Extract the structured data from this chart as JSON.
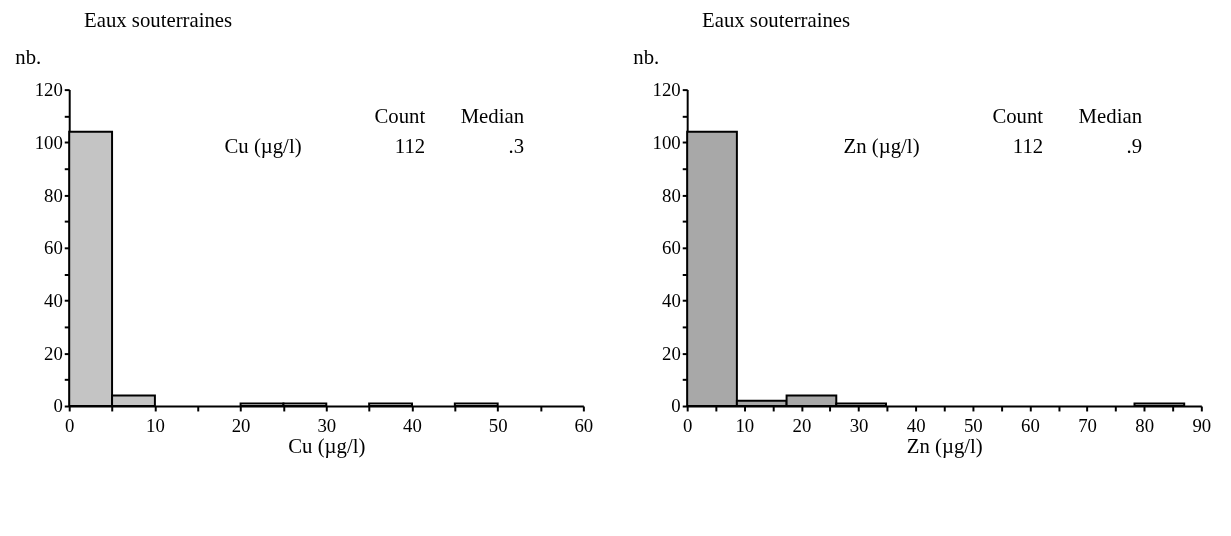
{
  "chart_data": [
    {
      "type": "histogram",
      "title": "Eaux souterraines",
      "xlabel": "Cu (µg/l)",
      "ylabel": "nb.",
      "bins": [
        0,
        5,
        10,
        15,
        20,
        25,
        30,
        35,
        40,
        45,
        50,
        55,
        60
      ],
      "values": [
        104,
        4,
        0,
        0,
        1,
        1,
        0,
        1,
        0,
        1,
        0,
        0
      ],
      "color": "#c4c4c4",
      "xlim": [
        0,
        60
      ],
      "ylim": [
        0,
        120
      ],
      "xticks": [
        0,
        {
          "value": 5,
          "label": null
        },
        10,
        {
          "value": 15,
          "label": null
        },
        20,
        {
          "value": 25,
          "label": null
        },
        30,
        {
          "value": 35,
          "label": null
        },
        40,
        {
          "value": 45,
          "label": null
        },
        50,
        {
          "value": 55,
          "label": null
        },
        60
      ],
      "yticks": [
        0,
        {
          "value": 10,
          "label": null
        },
        20,
        {
          "value": 30,
          "label": null
        },
        40,
        {
          "value": 50,
          "label": null
        },
        60,
        {
          "value": 70,
          "label": null
        },
        80,
        {
          "value": 90,
          "label": null
        },
        100,
        {
          "value": 110,
          "label": null
        },
        120
      ],
      "grid": false,
      "annotations": [
        "Count",
        "Median",
        "Cu (µg/l)",
        "112",
        ".3"
      ]
    },
    {
      "type": "histogram",
      "title": "Eaux souterraines",
      "xlabel": "Zn (µg/l)",
      "ylabel": "nb.",
      "bins": [
        0,
        8.7,
        17.4,
        26.1,
        34.8,
        43.5,
        52.2,
        60.9,
        69.6,
        78.3,
        87
      ],
      "values": [
        104,
        2,
        4,
        1,
        0,
        0,
        0,
        0,
        0,
        1
      ],
      "color": "#a8a8a8",
      "xlim": [
        0,
        90
      ],
      "ylim": [
        0,
        120
      ],
      "xticks": [
        0,
        {
          "value": 5,
          "label": null
        },
        10,
        {
          "value": 15,
          "label": null
        },
        20,
        {
          "value": 25,
          "label": null
        },
        30,
        {
          "value": 35,
          "label": null
        },
        40,
        {
          "value": 45,
          "label": null
        },
        50,
        {
          "value": 55,
          "label": null
        },
        60,
        {
          "value": 65,
          "label": null
        },
        70,
        {
          "value": 75,
          "label": null
        },
        80,
        {
          "value": 85,
          "label": null
        },
        90
      ],
      "yticks": [
        0,
        {
          "value": 10,
          "label": null
        },
        20,
        {
          "value": 30,
          "label": null
        },
        40,
        {
          "value": 50,
          "label": null
        },
        60,
        {
          "value": 70,
          "label": null
        },
        80,
        {
          "value": 90,
          "label": null
        },
        100,
        {
          "value": 110,
          "label": null
        },
        120
      ],
      "grid": false,
      "annotations": [
        "Count",
        "Median",
        "Zn (µg/l)",
        "112",
        ".9"
      ]
    }
  ]
}
